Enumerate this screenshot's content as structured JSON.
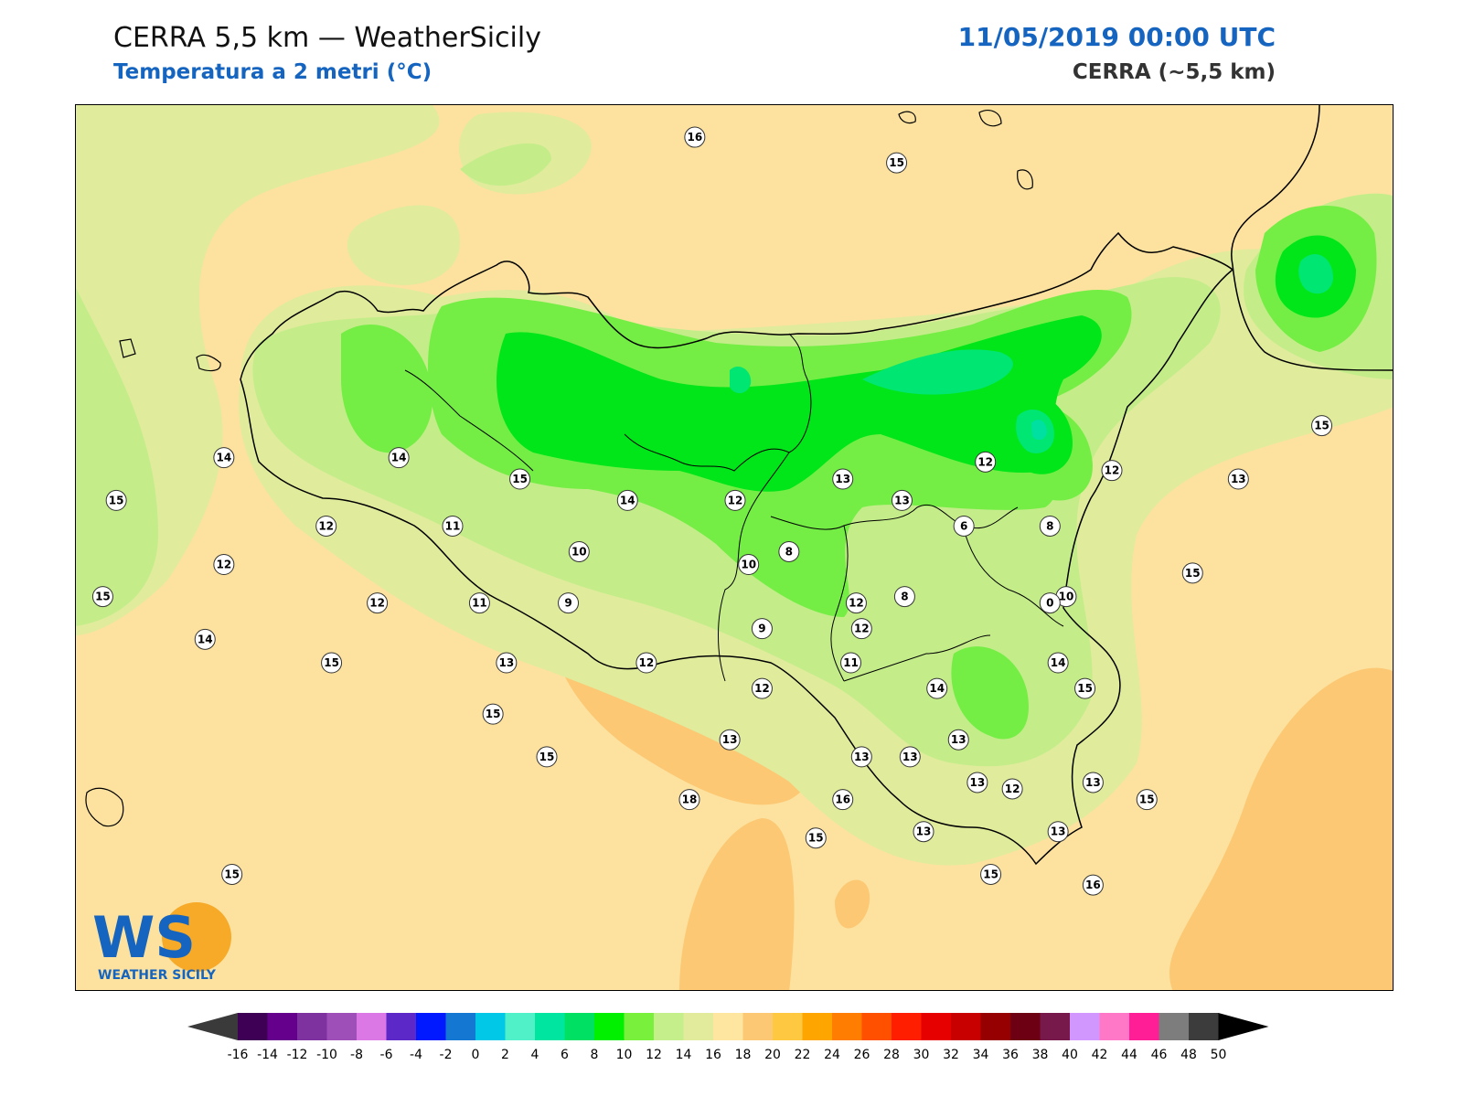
{
  "header": {
    "title": "CERRA 5,5 km — WeatherSicily",
    "subtitle": "Temperatura a 2 metri (°C)",
    "datetime": "11/05/2019 00:00 UTC",
    "model": "CERRA (~5,5 km)"
  },
  "logo": {
    "letters": "WS",
    "text": "WEATHER SICILY",
    "icon": "weather-sicily-logo"
  },
  "colors": {
    "sea": "#fde29f",
    "warm": "#fcc874",
    "t14": "#e0eb9c",
    "t12": "#c4ed8a",
    "t10": "#74ee45",
    "t8": "#00e619",
    "t6": "#00e672",
    "t4": "#00e0a0",
    "coast": "#000000",
    "accent": "#1565c0"
  },
  "colorbar": {
    "ticks": [
      "-16",
      "-14",
      "-12",
      "-10",
      "-8",
      "-6",
      "-4",
      "-2",
      "0",
      "2",
      "4",
      "6",
      "8",
      "10",
      "12",
      "14",
      "16",
      "18",
      "20",
      "22",
      "24",
      "26",
      "28",
      "30",
      "32",
      "34",
      "36",
      "38",
      "40",
      "42",
      "44",
      "46",
      "48",
      "50"
    ],
    "colors": [
      "#3d0054",
      "#64008c",
      "#7d32a0",
      "#9e4fb8",
      "#dc78e6",
      "#5c28c8",
      "#0019ff",
      "#1478d2",
      "#00c8e6",
      "#50f0c8",
      "#00e6a0",
      "#00e164",
      "#00f000",
      "#78f03c",
      "#c4ef8a",
      "#e2eb9c",
      "#ffe6a0",
      "#fcc874",
      "#ffc841",
      "#ffa500",
      "#ff7d00",
      "#ff5000",
      "#ff1e00",
      "#e60000",
      "#c80000",
      "#960000",
      "#6e0014",
      "#78194b",
      "#d296ff",
      "#ff78c8",
      "#ff1e96",
      "#7d7d7d",
      "#3c3c3c"
    ],
    "under_color": "#3a3a3a",
    "over_color": "#000000"
  },
  "stations": [
    {
      "label": "16",
      "lon": 14.2,
      "lat": 39.8
    },
    {
      "label": "15",
      "lon": 14.95,
      "lat": 39.68
    },
    {
      "label": "14",
      "lon": 12.45,
      "lat": 38.3
    },
    {
      "label": "14",
      "lon": 13.1,
      "lat": 38.3
    },
    {
      "label": "15",
      "lon": 13.55,
      "lat": 38.2
    },
    {
      "label": "15",
      "lon": 12.05,
      "lat": 38.1
    },
    {
      "label": "12",
      "lon": 12.83,
      "lat": 37.98
    },
    {
      "label": "11",
      "lon": 13.3,
      "lat": 37.98
    },
    {
      "label": "14",
      "lon": 13.95,
      "lat": 38.1
    },
    {
      "label": "13",
      "lon": 14.97,
      "lat": 38.1
    },
    {
      "label": "12",
      "lon": 14.35,
      "lat": 38.1
    },
    {
      "label": "13",
      "lon": 14.75,
      "lat": 38.2
    },
    {
      "label": "12",
      "lon": 15.28,
      "lat": 38.28
    },
    {
      "label": "12",
      "lon": 15.75,
      "lat": 38.24
    },
    {
      "label": "13",
      "lon": 16.22,
      "lat": 38.2
    },
    {
      "label": "15",
      "lon": 16.53,
      "lat": 38.45
    },
    {
      "label": "12",
      "lon": 12.45,
      "lat": 37.8
    },
    {
      "label": "10",
      "lon": 13.77,
      "lat": 37.86
    },
    {
      "label": "8",
      "lon": 14.55,
      "lat": 37.86
    },
    {
      "label": "10",
      "lon": 14.4,
      "lat": 37.8
    },
    {
      "label": "8",
      "lon": 15.52,
      "lat": 37.98
    },
    {
      "label": "6",
      "lon": 15.2,
      "lat": 37.98
    },
    {
      "label": "15",
      "lon": 12.0,
      "lat": 37.65
    },
    {
      "label": "8",
      "lon": 14.98,
      "lat": 37.65
    },
    {
      "label": "10",
      "lon": 15.58,
      "lat": 37.65
    },
    {
      "label": "15",
      "lon": 16.05,
      "lat": 37.76
    },
    {
      "label": "12",
      "lon": 13.02,
      "lat": 37.62
    },
    {
      "label": "11",
      "lon": 13.4,
      "lat": 37.62
    },
    {
      "label": "9",
      "lon": 13.73,
      "lat": 37.62
    },
    {
      "label": "12",
      "lon": 14.8,
      "lat": 37.62
    },
    {
      "label": "0",
      "lon": 15.52,
      "lat": 37.62
    },
    {
      "label": "9",
      "lon": 14.45,
      "lat": 37.5
    },
    {
      "label": "12",
      "lon": 14.82,
      "lat": 37.5
    },
    {
      "label": "14",
      "lon": 12.38,
      "lat": 37.45
    },
    {
      "label": "15",
      "lon": 12.85,
      "lat": 37.34
    },
    {
      "label": "13",
      "lon": 13.5,
      "lat": 37.34
    },
    {
      "label": "12",
      "lon": 14.02,
      "lat": 37.34
    },
    {
      "label": "11",
      "lon": 14.78,
      "lat": 37.34
    },
    {
      "label": "12",
      "lon": 14.45,
      "lat": 37.22
    },
    {
      "label": "14",
      "lon": 15.1,
      "lat": 37.22
    },
    {
      "label": "14",
      "lon": 15.55,
      "lat": 37.34
    },
    {
      "label": "15",
      "lon": 15.65,
      "lat": 37.22
    },
    {
      "label": "15",
      "lon": 13.45,
      "lat": 37.1
    },
    {
      "label": "13",
      "lon": 14.33,
      "lat": 36.98
    },
    {
      "label": "13",
      "lon": 15.18,
      "lat": 36.98
    },
    {
      "label": "15",
      "lon": 13.65,
      "lat": 36.9
    },
    {
      "label": "13",
      "lon": 14.82,
      "lat": 36.9
    },
    {
      "label": "13",
      "lon": 15.0,
      "lat": 36.9
    },
    {
      "label": "13",
      "lon": 15.25,
      "lat": 36.78
    },
    {
      "label": "12",
      "lon": 15.38,
      "lat": 36.75
    },
    {
      "label": "13",
      "lon": 15.68,
      "lat": 36.78
    },
    {
      "label": "18",
      "lon": 14.18,
      "lat": 36.7
    },
    {
      "label": "16",
      "lon": 14.75,
      "lat": 36.7
    },
    {
      "label": "15",
      "lon": 15.88,
      "lat": 36.7
    },
    {
      "label": "15",
      "lon": 14.65,
      "lat": 36.52
    },
    {
      "label": "13",
      "lon": 15.05,
      "lat": 36.55
    },
    {
      "label": "13",
      "lon": 15.55,
      "lat": 36.55
    },
    {
      "label": "15",
      "lon": 12.48,
      "lat": 36.35
    },
    {
      "label": "15",
      "lon": 15.3,
      "lat": 36.35
    },
    {
      "label": "16",
      "lon": 15.68,
      "lat": 36.3
    }
  ]
}
